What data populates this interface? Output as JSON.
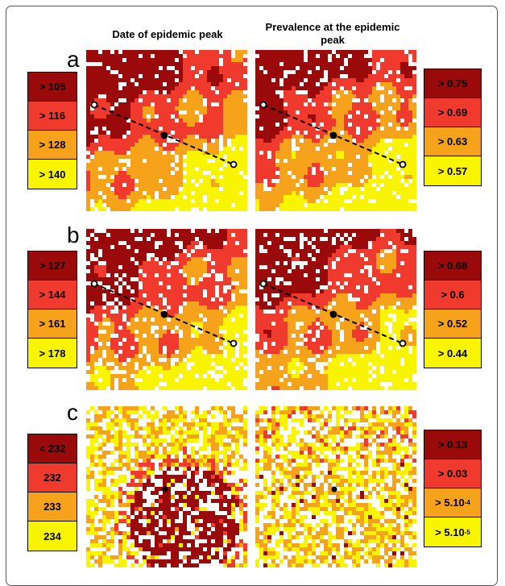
{
  "column_titles": {
    "left": "Date of epidemic peak",
    "right": "Prevalence at the epidemic peak"
  },
  "colors": {
    "dark_red": "#9b0a0a",
    "red": "#f03a2e",
    "orange": "#f7a21b",
    "yellow": "#f9f500",
    "white": "#ffffff"
  },
  "chart_data": [
    {
      "type": "heatmap",
      "panel": "a",
      "title": "Date of epidemic peak",
      "legend": [
        "> 105",
        "> 116",
        "> 128",
        "> 140"
      ],
      "path_marker": "dashed-arrow"
    },
    {
      "type": "heatmap",
      "panel": "a",
      "title": "Prevalence at the epidemic peak",
      "legend": [
        "> 0.75",
        "> 0.69",
        "> 0.63",
        "> 0.57"
      ],
      "path_marker": "dashed-arrow"
    },
    {
      "type": "heatmap",
      "panel": "b",
      "title": "Date of epidemic peak",
      "legend": [
        "> 127",
        "> 144",
        "> 161",
        "> 178"
      ],
      "path_marker": "dashed-arrow"
    },
    {
      "type": "heatmap",
      "panel": "b",
      "title": "Prevalence at the epidemic peak",
      "legend": [
        "> 0.68",
        "> 0.6",
        "> 0.52",
        "> 0.44"
      ],
      "path_marker": "dashed-arrow"
    },
    {
      "type": "heatmap",
      "panel": "c",
      "title": "Date of epidemic peak",
      "legend": [
        "< 232",
        "232",
        "233",
        "234"
      ],
      "path_marker": "dot"
    },
    {
      "type": "heatmap",
      "panel": "c",
      "title": "Prevalence at the epidemic peak",
      "legend": [
        "> 0.13",
        "> 0.03",
        "> 5.10",
        "> 5.10"
      ],
      "legend_superscripts": [
        "",
        "",
        "-4",
        "-5"
      ],
      "path_marker": "dot"
    }
  ],
  "panels": [
    {
      "letter": "a"
    },
    {
      "letter": "b"
    },
    {
      "letter": "c"
    }
  ]
}
